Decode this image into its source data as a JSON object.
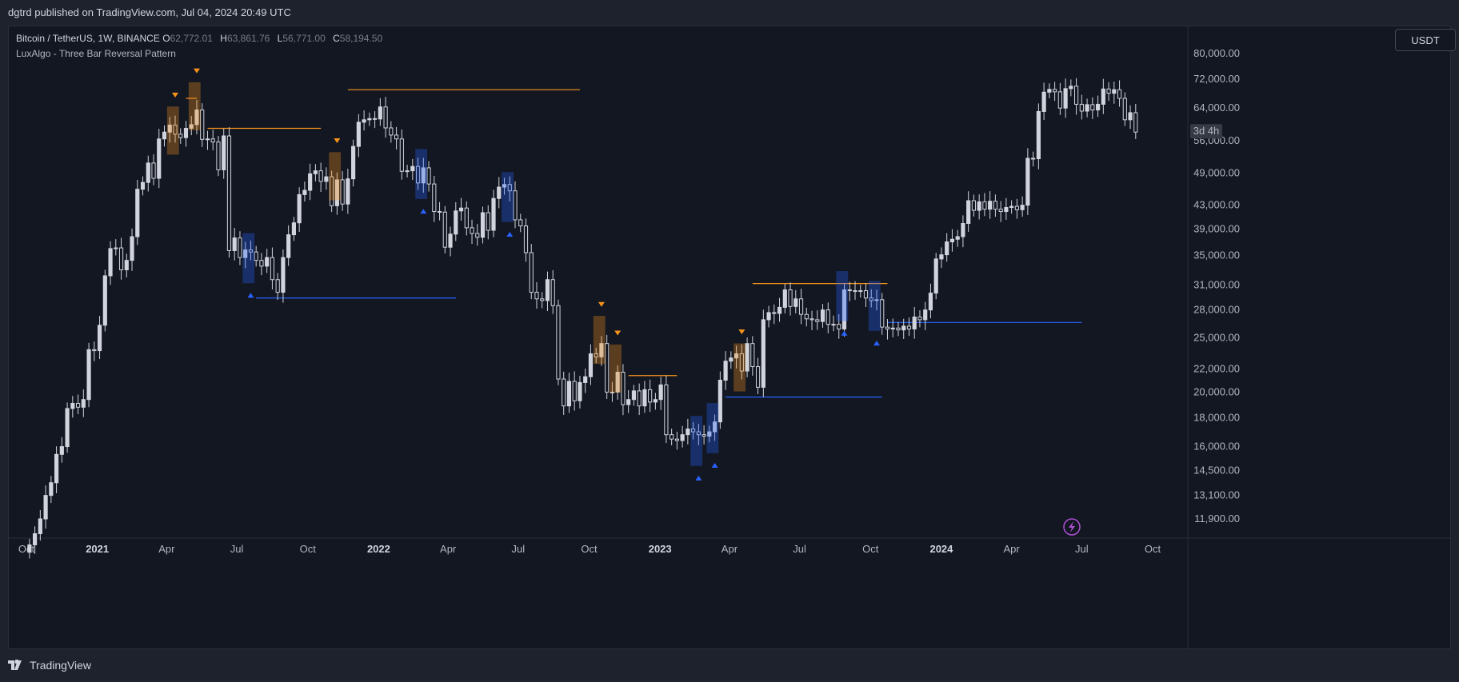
{
  "header": {
    "publisher_line": "dgtrd published on TradingView.com, Jul 04, 2024 20:49 UTC"
  },
  "legend": {
    "symbol_line": "Bitcoin / TetherUS, 1W, BINANCE",
    "open_key": "O",
    "open": "62,772.01",
    "high_key": "H",
    "high": "63,861.76",
    "low_key": "L",
    "low": "56,771.00",
    "close_key": "C",
    "close": "58,194.50",
    "indicator": "LuxAlgo - Three Bar Reversal Pattern"
  },
  "currency_button": "USDT",
  "countdown_badge": "3d 4h",
  "footer": {
    "brand": "TradingView"
  },
  "colors": {
    "background": "#131722",
    "candle": "#d1d4dc",
    "bearish_pattern": "#f7931a",
    "bullish_pattern": "#2962ff",
    "accent_icon": "#b04fd6"
  },
  "chart_data": {
    "type": "candlestick",
    "title": "",
    "price_axis": {
      "scale": "log",
      "ticks": [
        "80,000.00",
        "72,000.00",
        "64,000.00",
        "56,000.00",
        "49,000.00",
        "43,000.00",
        "39,000.00",
        "35,000.00",
        "31,000.00",
        "28,000.00",
        "25,000.00",
        "22,000.00",
        "20,000.00",
        "18,000.00",
        "16,000.00",
        "14,500.00",
        "13,100.00",
        "11,900.00"
      ],
      "range": [
        10800,
        86000
      ]
    },
    "time_axis": {
      "ticks": [
        {
          "label": "Oct",
          "date": "2020-10-01",
          "year": false
        },
        {
          "label": "2021",
          "date": "2021-01-01",
          "year": true
        },
        {
          "label": "Apr",
          "date": "2021-04-01",
          "year": false
        },
        {
          "label": "Jul",
          "date": "2021-07-01",
          "year": false
        },
        {
          "label": "Oct",
          "date": "2021-10-01",
          "year": false
        },
        {
          "label": "2022",
          "date": "2022-01-01",
          "year": true
        },
        {
          "label": "Apr",
          "date": "2022-04-01",
          "year": false
        },
        {
          "label": "Jul",
          "date": "2022-07-01",
          "year": false
        },
        {
          "label": "Oct",
          "date": "2022-10-01",
          "year": false
        },
        {
          "label": "2023",
          "date": "2023-01-01",
          "year": true
        },
        {
          "label": "Apr",
          "date": "2023-04-01",
          "year": false
        },
        {
          "label": "Jul",
          "date": "2023-07-01",
          "year": false
        },
        {
          "label": "Oct",
          "date": "2023-10-01",
          "year": false
        },
        {
          "label": "2024",
          "date": "2024-01-01",
          "year": true
        },
        {
          "label": "Apr",
          "date": "2024-04-01",
          "year": false
        },
        {
          "label": "Jul",
          "date": "2024-07-01",
          "year": false
        },
        {
          "label": "Oct",
          "date": "2024-10-01",
          "year": false
        }
      ]
    },
    "interval": "1W",
    "first_bar": "2020-10-05",
    "weekly_closes": [
      10700,
      11200,
      11900,
      13100,
      13800,
      15500,
      16000,
      18700,
      19100,
      18800,
      19400,
      23800,
      23700,
      26300,
      32200,
      36000,
      36100,
      33000,
      34300,
      37800,
      45900,
      47200,
      51100,
      48000,
      56400,
      58000,
      59700,
      57500,
      56700,
      58900,
      59800,
      63500,
      56300,
      56400,
      55700,
      49700,
      57100,
      35700,
      37600,
      34700,
      35800,
      35500,
      34300,
      33500,
      34700,
      31700,
      30100,
      34700,
      38100,
      40000,
      44900,
      45700,
      48900,
      49500,
      47400,
      48300,
      42900,
      47700,
      43200,
      47900,
      54700,
      60400,
      61000,
      61300,
      61200,
      64300,
      59000,
      57300,
      56400,
      49400,
      49500,
      50400,
      47100,
      50100,
      46900,
      41900,
      41800,
      36200,
      38200,
      42000,
      42500,
      39200,
      38300,
      37700,
      41700,
      38800,
      44200,
      46300,
      46800,
      45600,
      40500,
      39500,
      35400,
      30100,
      29300,
      29100,
      31700,
      28500,
      21100,
      18900,
      20900,
      19300,
      20800,
      21300,
      23400,
      23100,
      24400,
      20000,
      20000,
      21700,
      19000,
      19400,
      20100,
      18900,
      20200,
      19200,
      19400,
      20600,
      16800,
      16500,
      16400,
      16800,
      17200,
      17000,
      16800,
      16700,
      17000,
      17700,
      21000,
      22700,
      23000,
      23400,
      21800,
      24400,
      22200,
      20400,
      26900,
      27700,
      27600,
      28300,
      30400,
      28400,
      29300,
      27500,
      27000,
      26900,
      26700,
      28000,
      26400,
      26400,
      25900,
      30400,
      30300,
      30200,
      30300,
      29400,
      29100,
      29200,
      26100,
      25900,
      26000,
      25800,
      26200,
      25900,
      27200,
      26900,
      28000,
      30000,
      34500,
      35100,
      37000,
      37400,
      37800,
      39900,
      43800,
      42100,
      43600,
      42300,
      43700,
      42300,
      41900,
      42600,
      42800,
      42200,
      43000,
      52100,
      52000,
      63100,
      68300,
      69100,
      68400,
      64000,
      69300,
      70000,
      65000,
      63200,
      64900,
      63500,
      65000,
      69200,
      68000,
      69000,
      66600,
      61000,
      62800,
      58000
    ],
    "patterns": {
      "bearish_signals": [
        {
          "date": "2021-04-12"
        },
        {
          "date": "2021-05-10"
        },
        {
          "date": "2021-11-08"
        },
        {
          "date": "2022-10-17"
        },
        {
          "date": "2022-11-07"
        },
        {
          "date": "2023-04-17"
        }
      ],
      "bullish_signals": [
        {
          "date": "2021-07-19"
        },
        {
          "date": "2022-02-28"
        },
        {
          "date": "2022-06-20"
        },
        {
          "date": "2023-02-20"
        },
        {
          "date": "2023-03-13"
        },
        {
          "date": "2023-08-28"
        },
        {
          "date": "2023-10-09"
        }
      ],
      "resistance_levels": [
        {
          "price": 66600,
          "start": "2021-04-26",
          "end": "2021-05-10"
        },
        {
          "price": 58900,
          "start": "2021-05-24",
          "end": "2021-10-18"
        },
        {
          "price": 69000,
          "start": "2021-11-22",
          "end": "2022-09-19"
        },
        {
          "price": 21400,
          "start": "2022-11-21",
          "end": "2023-01-23"
        },
        {
          "price": 31200,
          "start": "2023-05-01",
          "end": "2023-10-23"
        }
      ],
      "support_levels": [
        {
          "price": 29400,
          "start": "2021-07-26",
          "end": "2022-04-11"
        },
        {
          "price": 19600,
          "start": "2023-03-27",
          "end": "2023-10-16"
        },
        {
          "price": 26600,
          "start": "2023-10-23",
          "end": "2024-07-01"
        }
      ]
    }
  }
}
